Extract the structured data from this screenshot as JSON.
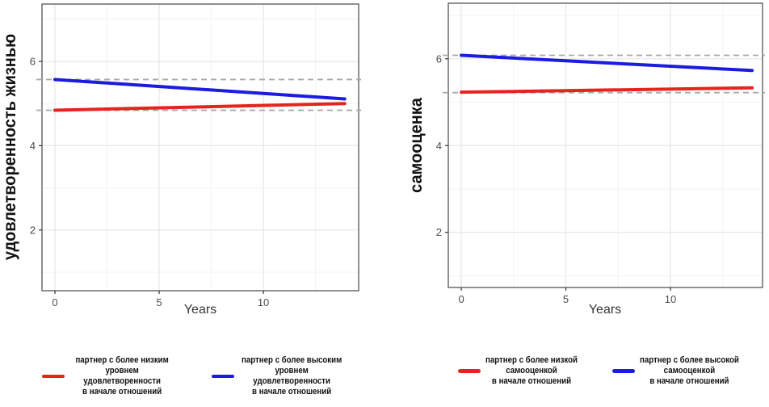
{
  "style": {
    "background": "#FFFFFF",
    "panel_background": "#FFFFFF",
    "panel_border": "#454545",
    "grid_major": "#E6E6E6",
    "grid_minor": "#F3F3F3",
    "tick_color": "#333333",
    "tick_label_color": "#4D4D4D",
    "reference_dash_color": "#A9A9A9",
    "red": "#E7231F",
    "blue": "#1C1CE0"
  },
  "chart_data": [
    {
      "type": "line",
      "title": "",
      "xlabel": "Years",
      "ylabel": "удовлетворенность жизнью",
      "x_ticks": [
        0,
        5,
        10
      ],
      "y_ticks": [
        2,
        4,
        6
      ],
      "x_minor_gridlines": [
        2.5,
        7.5,
        12.5
      ],
      "y_minor_gridlines": [
        1,
        3,
        5,
        7
      ],
      "xlim": [
        -0.62,
        14.57
      ],
      "ylim": [
        0.56,
        7.36
      ],
      "grid": true,
      "legend_position": "bottom",
      "series": [
        {
          "name": "партнер с более низким\nуровнем удовлетворенности\nв начале отношений",
          "color": "#E7231F",
          "points": [
            [
              0,
              4.84
            ],
            [
              13.9,
              5.0
            ]
          ]
        },
        {
          "name": "партнер с более высоким\nуровнем удовлетворенности\nв начале отношений",
          "color": "#1C1CE0",
          "points": [
            [
              0,
              5.57
            ],
            [
              13.9,
              5.11
            ]
          ]
        }
      ],
      "reference_lines": [
        {
          "y": 5.57,
          "style": "dashed",
          "color": "#A9A9A9"
        },
        {
          "y": 4.84,
          "style": "dashed",
          "color": "#A9A9A9"
        }
      ]
    },
    {
      "type": "line",
      "title": "",
      "xlabel": "Years",
      "ylabel": "самооценка",
      "x_ticks": [
        0,
        5,
        10
      ],
      "y_ticks": [
        2,
        4,
        6
      ],
      "x_minor_gridlines": [
        2.5,
        7.5,
        12.5
      ],
      "y_minor_gridlines": [
        1,
        3,
        5,
        7
      ],
      "xlim": [
        -0.62,
        14.4
      ],
      "ylim": [
        0.73,
        7.28
      ],
      "grid": true,
      "legend_position": "bottom",
      "series": [
        {
          "name": "партнер с более низкой\nсамооценкой\nв начале отношений",
          "color": "#E7231F",
          "points": [
            [
              0,
              5.23
            ],
            [
              13.9,
              5.33
            ]
          ]
        },
        {
          "name": "партнер с более высокой\nсамооценкой\nв начале отношений",
          "color": "#1C1CE0",
          "points": [
            [
              0,
              6.08
            ],
            [
              13.9,
              5.73
            ]
          ]
        }
      ],
      "reference_lines": [
        {
          "y": 6.08,
          "style": "dashed",
          "color": "#A9A9A9"
        },
        {
          "y": 5.22,
          "style": "dashed",
          "color": "#A9A9A9"
        }
      ]
    }
  ]
}
